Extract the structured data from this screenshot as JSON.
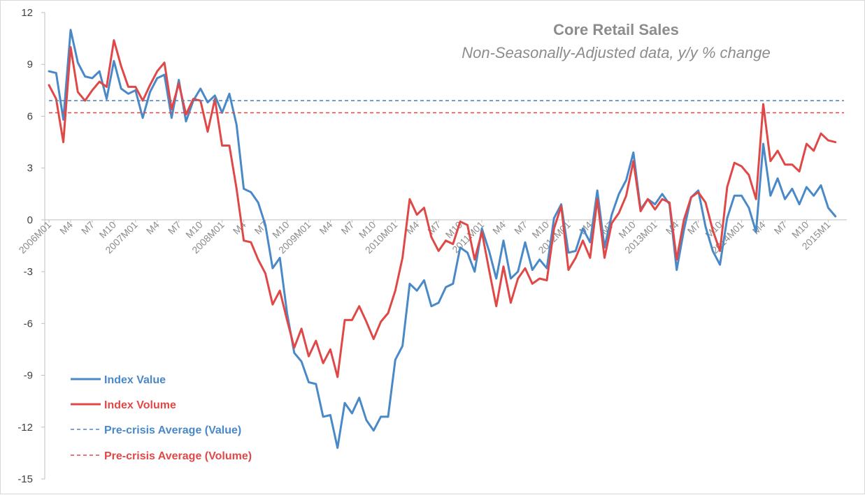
{
  "chart_data": {
    "type": "line",
    "title": "Core Retail Sales",
    "subtitle": "Non-Seasonally-Adjusted data, y/y % change",
    "ylim": [
      -15,
      12
    ],
    "yticks": [
      12,
      9,
      6,
      3,
      0,
      -3,
      -6,
      -9,
      -12,
      -15
    ],
    "x_tick_labels": [
      "2006M01",
      "M4",
      "M7",
      "M10",
      "2007M01",
      "M4",
      "M7",
      "M10",
      "2008M01",
      "M4",
      "M7",
      "M10",
      "2009M01",
      "M4",
      "M7",
      "M10",
      "2010M01",
      "M4",
      "M7",
      "M10",
      "2011M01",
      "M4",
      "M7",
      "M10",
      "2012M01",
      "M4",
      "M7",
      "M10",
      "2013M01",
      "M4",
      "M7",
      "M10",
      "2014M01",
      "M4",
      "M7",
      "M10",
      "2015M1"
    ],
    "x_start": "2006M01",
    "n_points": 111,
    "series": [
      {
        "name": "Index Value",
        "color": "#4a89c8",
        "values": [
          8.6,
          8.5,
          5.8,
          11.0,
          9.1,
          8.3,
          8.2,
          8.6,
          7.0,
          9.2,
          7.6,
          7.3,
          7.5,
          5.9,
          7.4,
          8.2,
          8.4,
          5.9,
          8.1,
          5.7,
          6.9,
          7.6,
          6.8,
          7.2,
          6.2,
          7.3,
          5.5,
          1.8,
          1.6,
          1.0,
          -0.3,
          -2.8,
          -2.2,
          -5.4,
          -7.7,
          -8.2,
          -9.4,
          -9.5,
          -11.4,
          -11.3,
          -13.2,
          -10.6,
          -11.2,
          -10.3,
          -11.6,
          -12.2,
          -11.4,
          -11.4,
          -8.1,
          -7.3,
          -3.7,
          -4.1,
          -3.5,
          -5.0,
          -4.8,
          -3.9,
          -3.7,
          -1.6,
          -1.9,
          -3.0,
          -0.5,
          -1.8,
          -3.4,
          -1.2,
          -3.4,
          -3.0,
          -1.3,
          -2.9,
          -2.3,
          -2.8,
          0.1,
          0.9,
          -1.9,
          -1.8,
          -0.5,
          -1.3,
          1.7,
          -1.6,
          0.3,
          1.5,
          2.3,
          3.9,
          0.6,
          1.2,
          0.9,
          1.5,
          0.9,
          -2.9,
          -0.6,
          1.3,
          1.7,
          -0.4,
          -1.8,
          -2.6,
          0.1,
          1.4,
          1.4,
          0.7,
          -0.7,
          4.4,
          1.4,
          2.4,
          1.2,
          1.8,
          0.9,
          1.9,
          1.4,
          2.0,
          0.7,
          0.2
        ],
        "style": "solid"
      },
      {
        "name": "Index Volume",
        "color": "#e04848",
        "values": [
          7.8,
          7.0,
          4.5,
          10.0,
          7.4,
          6.9,
          7.5,
          8.0,
          7.7,
          10.4,
          8.9,
          7.7,
          7.7,
          6.9,
          7.8,
          8.6,
          9.1,
          6.4,
          7.9,
          6.1,
          7.0,
          6.9,
          5.1,
          7.0,
          4.3,
          4.3,
          1.8,
          -1.2,
          -1.3,
          -2.3,
          -3.1,
          -4.9,
          -4.1,
          -5.8,
          -7.4,
          -6.3,
          -7.9,
          -7.0,
          -8.3,
          -7.5,
          -9.1,
          -5.8,
          -5.8,
          -5.0,
          -5.9,
          -6.9,
          -5.9,
          -5.4,
          -4.1,
          -2.2,
          1.2,
          0.3,
          0.7,
          -1.0,
          -1.8,
          -1.2,
          -1.4,
          -0.1,
          -0.3,
          -2.3,
          -0.7,
          -2.9,
          -5.0,
          -2.7,
          -4.8,
          -3.4,
          -2.8,
          -3.7,
          -3.4,
          -3.5,
          -0.5,
          0.8,
          -2.9,
          -2.2,
          -1.2,
          -2.2,
          1.2,
          -2.2,
          -0.2,
          0.4,
          1.4,
          3.4,
          0.5,
          1.2,
          0.6,
          1.2,
          1.0,
          -2.3,
          0.0,
          1.3,
          1.6,
          1.0,
          -0.6,
          -1.8,
          1.9,
          3.3,
          3.1,
          2.6,
          1.2,
          6.7,
          3.4,
          4.0,
          3.2,
          3.2,
          2.8,
          4.4,
          4.0,
          5.0,
          4.6,
          4.5
        ],
        "style": "solid"
      },
      {
        "name": "Pre-crisis Average (Value)",
        "color": "#4a89c8",
        "constant": 6.9,
        "style": "dashed"
      },
      {
        "name": "Pre-crisis Average (Volume)",
        "color": "#e04848",
        "constant": 6.2,
        "style": "dashed"
      }
    ]
  }
}
